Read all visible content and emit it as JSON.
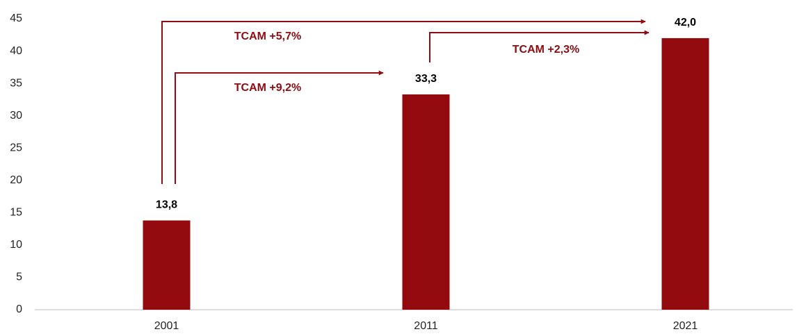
{
  "chart_data": {
    "type": "bar",
    "categories": [
      "2001",
      "2011",
      "2021"
    ],
    "values": [
      13.8,
      33.3,
      42.0
    ],
    "value_labels": [
      "13,8",
      "33,3",
      "42,0"
    ],
    "color": "#920a0e",
    "ylim": [
      0,
      45
    ],
    "yticks": [
      0,
      5,
      10,
      15,
      20,
      25,
      30,
      35,
      40,
      45
    ],
    "grid": false,
    "annotations": [
      "TCAM +5,7%",
      "TCAM +9,2%",
      "TCAM +2,3%"
    ]
  }
}
